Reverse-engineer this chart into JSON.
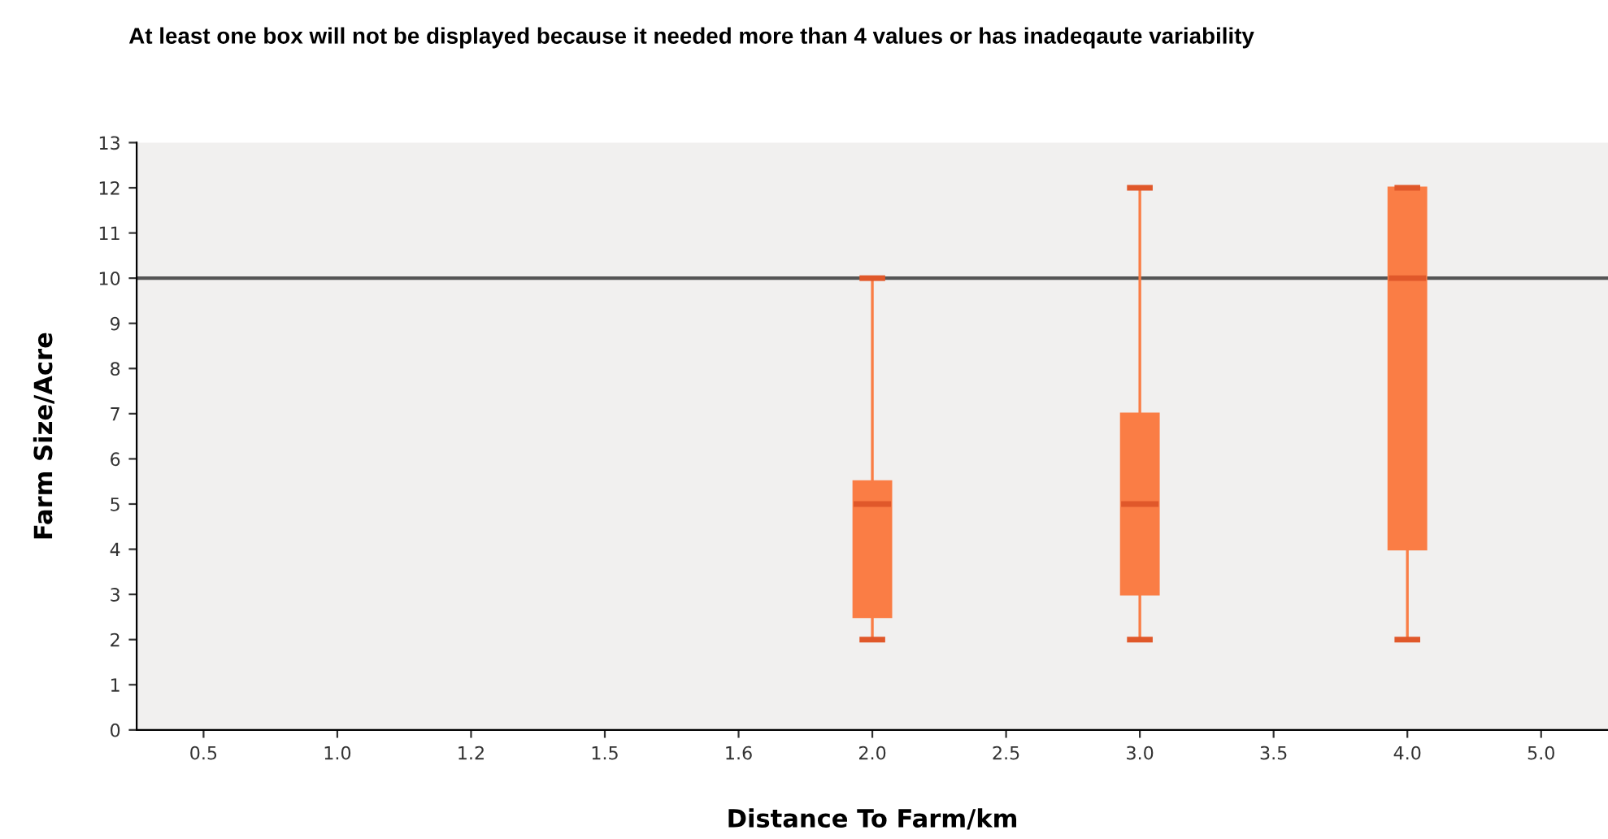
{
  "chart_data": {
    "type": "box",
    "title": "At least one box will not be displayed because it needed more than 4 values or has inadeqaute variability",
    "xlabel": "Distance To Farm/km",
    "ylabel": "Farm Size/Acre",
    "categories": [
      "0.5",
      "1.0",
      "1.2",
      "1.5",
      "1.6",
      "2.0",
      "2.5",
      "3.0",
      "3.5",
      "4.0",
      "5.0"
    ],
    "series": [
      {
        "color": "#fa7d45",
        "boxes": [
          null,
          null,
          null,
          null,
          null,
          {
            "low": 2,
            "q1": 2.5,
            "median": 5,
            "q3": 5.5,
            "high": 10
          },
          null,
          {
            "low": 2,
            "q1": 3,
            "median": 5,
            "q3": 7,
            "high": 12
          },
          null,
          {
            "low": 2,
            "q1": 4,
            "median": 10,
            "q3": 12,
            "high": 12
          },
          null
        ]
      }
    ],
    "ylim": [
      0,
      13
    ],
    "yticks": [
      0,
      1,
      2,
      3,
      4,
      5,
      6,
      7,
      8,
      9,
      10,
      11,
      12,
      13
    ],
    "ref_lines": [
      {
        "axis": "y",
        "value": 10,
        "color": "#555555"
      }
    ],
    "grid": false,
    "legend": false
  }
}
